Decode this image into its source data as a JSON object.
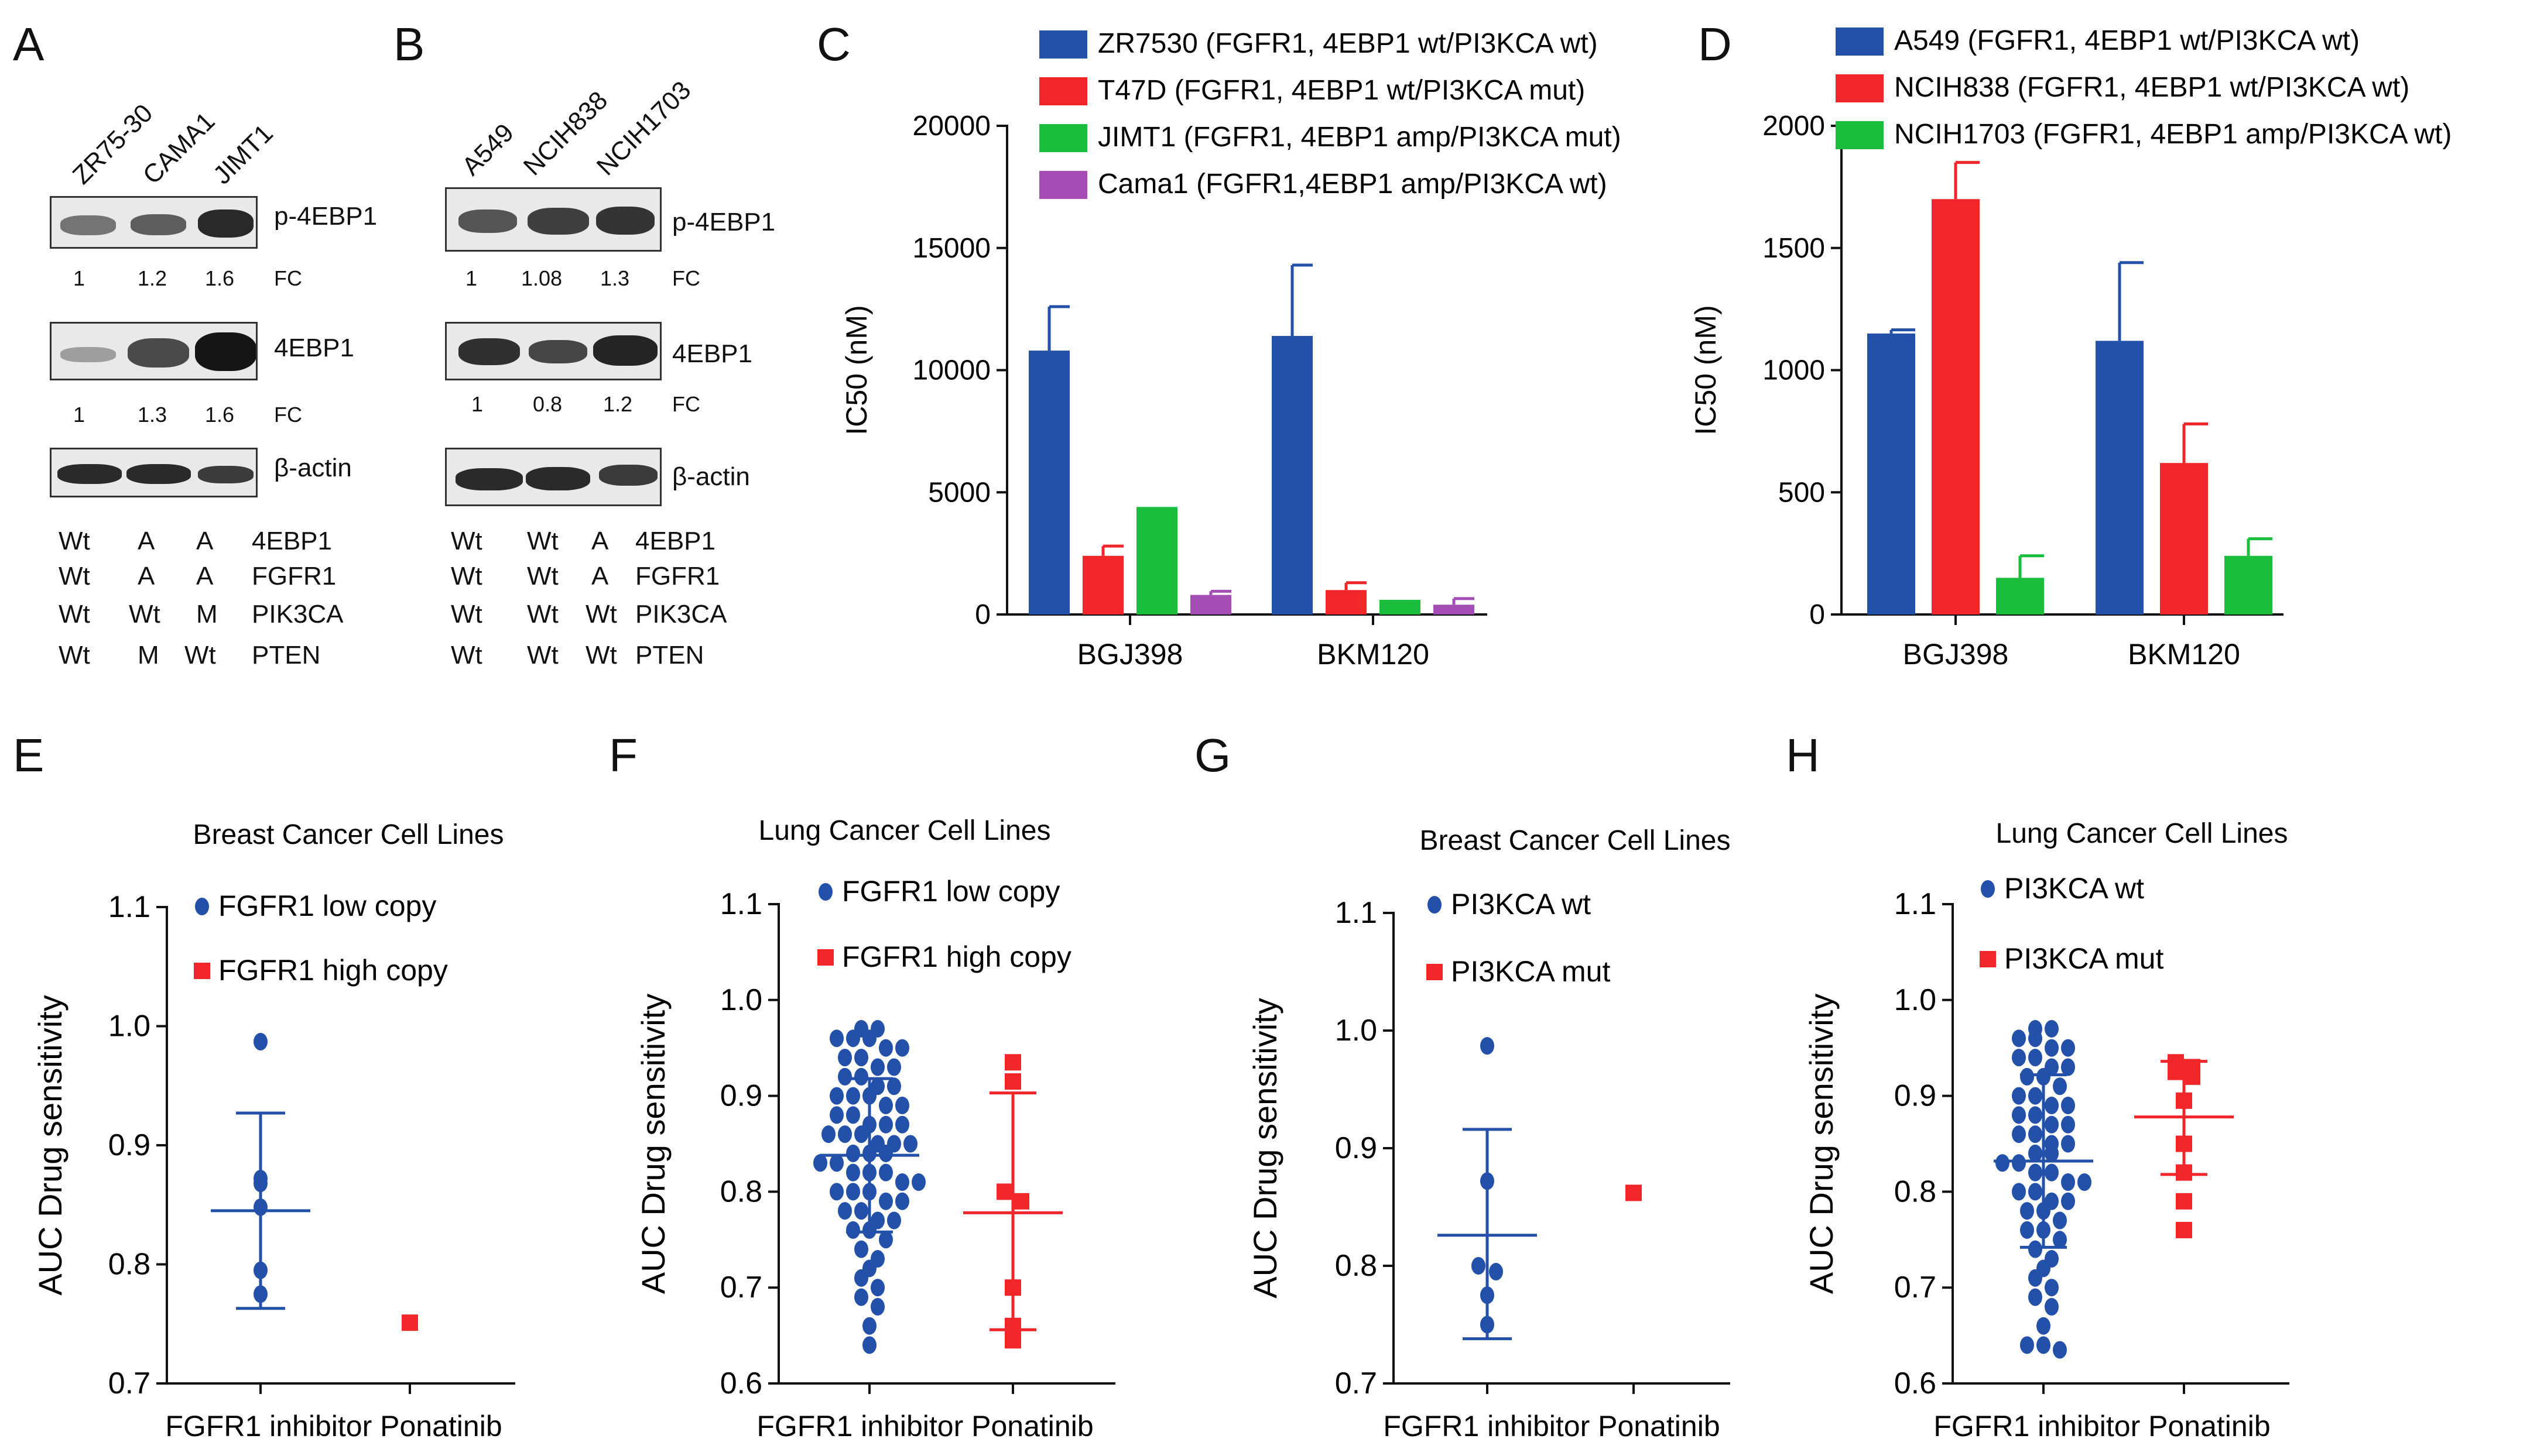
{
  "panels": {
    "A": "A",
    "B": "B",
    "C": "C",
    "D": "D",
    "E": "E",
    "F": "F",
    "G": "G",
    "H": "H"
  },
  "blotA": {
    "lanes": [
      "ZR75-30",
      "CAMA1",
      "JIMT1"
    ],
    "rows": [
      {
        "name": "p-4EBP1",
        "fc": [
          "1",
          "1.2",
          "1.6"
        ],
        "fc_label": "FC",
        "intensity": [
          0.55,
          0.65,
          0.9
        ]
      },
      {
        "name": "4EBP1",
        "fc": [
          "1",
          "1.3",
          "1.6"
        ],
        "fc_label": "FC",
        "intensity": [
          0.35,
          0.7,
          0.95
        ]
      },
      {
        "name": "β-actin",
        "intensity": [
          0.85,
          0.85,
          0.8
        ]
      }
    ],
    "genotype": [
      {
        "values": [
          "Wt",
          "A",
          "A"
        ],
        "gene": "4EBP1"
      },
      {
        "values": [
          "Wt",
          "A",
          "A"
        ],
        "gene": "FGFR1"
      },
      {
        "values": [
          "Wt",
          "Wt",
          "M"
        ],
        "gene": "PIK3CA"
      },
      {
        "values": [
          "Wt",
          "M",
          "Wt"
        ],
        "gene": "PTEN"
      }
    ]
  },
  "blotB": {
    "lanes": [
      "A549",
      "NCIH838",
      "NCIH1703"
    ],
    "rows": [
      {
        "name": "p-4EBP1",
        "fc": [
          "1",
          "1.08",
          "1.3"
        ],
        "fc_label": "FC",
        "intensity": [
          0.7,
          0.8,
          0.85
        ]
      },
      {
        "name": "4EBP1",
        "fc": [
          "1",
          "0.8",
          "1.2"
        ],
        "fc_label": "FC",
        "intensity": [
          0.8,
          0.7,
          0.9
        ]
      },
      {
        "name": "β-actin",
        "intensity": [
          0.85,
          0.85,
          0.8
        ]
      }
    ],
    "genotype": [
      {
        "values": [
          "Wt",
          "Wt",
          "A"
        ],
        "gene": "4EBP1"
      },
      {
        "values": [
          "Wt",
          "Wt",
          "A"
        ],
        "gene": "FGFR1"
      },
      {
        "values": [
          "Wt",
          "Wt",
          "Wt"
        ],
        "gene": "PIK3CA"
      },
      {
        "values": [
          "Wt",
          "Wt",
          "Wt"
        ],
        "gene": "PTEN"
      }
    ]
  },
  "chart_data": [
    {
      "panel": "C",
      "type": "bar",
      "ylabel": "IC50 (nM)",
      "ylim": [
        0,
        20000
      ],
      "yticks": [
        0,
        5000,
        10000,
        15000,
        20000
      ],
      "categories": [
        "BGJ398",
        "BKM120"
      ],
      "series": [
        {
          "name": "ZR7530 (FGFR1, 4EBP1 wt/PI3KCA wt)",
          "color": "#2350a8",
          "values": [
            10800,
            11400
          ],
          "err": [
            1800,
            2900
          ]
        },
        {
          "name": "T47D (FGFR1, 4EBP1 wt/PI3KCA mut)",
          "color": "#f0262b",
          "values": [
            2400,
            1000
          ],
          "err": [
            400,
            300
          ]
        },
        {
          "name": "JIMT1 (FGFR1, 4EBP1 amp/PI3KCA mut)",
          "color": "#1bbd3c",
          "values": [
            4400,
            600
          ],
          "err": [
            0,
            0
          ]
        },
        {
          "name": "Cama1 (FGFR1,4EBP1 amp/PI3KCA wt)",
          "color": "#a34db5",
          "values": [
            800,
            400
          ],
          "err": [
            150,
            250
          ]
        }
      ]
    },
    {
      "panel": "D",
      "type": "bar",
      "ylabel": "IC50 (nM)",
      "ylim": [
        0,
        2000
      ],
      "yticks": [
        0,
        500,
        1000,
        1500,
        2000
      ],
      "categories": [
        "BGJ398",
        "BKM120"
      ],
      "series": [
        {
          "name": "A549 (FGFR1, 4EBP1 wt/PI3KCA wt)",
          "color": "#2350a8",
          "values": [
            1150,
            1120
          ],
          "err": [
            15,
            320
          ]
        },
        {
          "name": "NCIH838 (FGFR1, 4EBP1 wt/PI3KCA wt)",
          "color": "#f0262b",
          "values": [
            1700,
            620
          ],
          "err": [
            150,
            160
          ]
        },
        {
          "name": "NCIH1703 (FGFR1, 4EBP1 amp/PI3KCA wt)",
          "color": "#1bbd3c",
          "values": [
            150,
            240
          ],
          "err": [
            90,
            70
          ]
        }
      ]
    },
    {
      "panel": "E",
      "type": "scatter",
      "title": "Breast Cancer Cell Lines",
      "ylabel": "AUC Drug sensitivity",
      "xlabel": "FGFR1 inhibitor Ponatinib",
      "ylim": [
        0.7,
        1.1
      ],
      "yticks": [
        0.7,
        0.8,
        0.9,
        1.0,
        1.1
      ],
      "series": [
        {
          "name": "FGFR1 low copy",
          "marker": "circle",
          "color": "#2350a8",
          "values": [
            0.987,
            0.872,
            0.868,
            0.848,
            0.795,
            0.775
          ],
          "mean": 0.845,
          "sd_low": 0.763,
          "sd_high": 0.927
        },
        {
          "name": "FGFR1 high copy",
          "marker": "square",
          "color": "#f0262b",
          "values": [
            0.751
          ]
        }
      ]
    },
    {
      "panel": "F",
      "type": "scatter",
      "title": "Lung Cancer Cell Lines",
      "ylabel": "AUC Drug sensitivity",
      "xlabel": "FGFR1 inhibitor Ponatinib",
      "ylim": [
        0.6,
        1.1
      ],
      "yticks": [
        0.6,
        0.7,
        0.8,
        0.9,
        1.0,
        1.1
      ],
      "series": [
        {
          "name": "FGFR1 low copy",
          "marker": "circle",
          "color": "#2350a8",
          "values": [
            0.97,
            0.97,
            0.96,
            0.96,
            0.96,
            0.95,
            0.95,
            0.94,
            0.94,
            0.93,
            0.93,
            0.92,
            0.92,
            0.91,
            0.91,
            0.9,
            0.9,
            0.9,
            0.89,
            0.89,
            0.88,
            0.88,
            0.87,
            0.87,
            0.87,
            0.86,
            0.86,
            0.86,
            0.85,
            0.85,
            0.85,
            0.84,
            0.84,
            0.84,
            0.83,
            0.83,
            0.82,
            0.82,
            0.82,
            0.81,
            0.81,
            0.8,
            0.8,
            0.8,
            0.79,
            0.79,
            0.78,
            0.78,
            0.77,
            0.77,
            0.76,
            0.76,
            0.75,
            0.74,
            0.73,
            0.72,
            0.71,
            0.7,
            0.69,
            0.68,
            0.66,
            0.64
          ],
          "mean": 0.838,
          "sd_low": 0.758,
          "sd_high": 0.918
        },
        {
          "name": "FGFR1 high copy",
          "marker": "square",
          "color": "#f0262b",
          "values": [
            0.935,
            0.915,
            0.8,
            0.79,
            0.7,
            0.66,
            0.645
          ],
          "mean": 0.778,
          "sd_low": 0.656,
          "sd_high": 0.903
        }
      ]
    },
    {
      "panel": "G",
      "type": "scatter",
      "title": "Breast Cancer Cell Lines",
      "ylabel": "AUC Drug sensitivity",
      "xlabel": "FGFR1 inhibitor Ponatinib",
      "ylim": [
        0.7,
        1.1
      ],
      "yticks": [
        0.7,
        0.8,
        0.9,
        1.0,
        1.1
      ],
      "series": [
        {
          "name": "PI3KCA wt",
          "marker": "circle",
          "color": "#2350a8",
          "values": [
            0.987,
            0.872,
            0.8,
            0.795,
            0.775,
            0.75
          ],
          "mean": 0.826,
          "sd_low": 0.738,
          "sd_high": 0.916
        },
        {
          "name": "PI3KCA mut",
          "marker": "square",
          "color": "#f0262b",
          "values": [
            0.862
          ]
        }
      ]
    },
    {
      "panel": "H",
      "type": "scatter",
      "title": "Lung Cancer Cell Lines",
      "ylabel": "AUC Drug sensitivity",
      "xlabel": "FGFR1 inhibitor Ponatinib",
      "ylim": [
        0.6,
        1.1
      ],
      "yticks": [
        0.6,
        0.7,
        0.8,
        0.9,
        1.0,
        1.1
      ],
      "series": [
        {
          "name": "PI3KCA wt",
          "marker": "circle",
          "color": "#2350a8",
          "values": [
            0.97,
            0.97,
            0.96,
            0.96,
            0.95,
            0.95,
            0.94,
            0.94,
            0.93,
            0.93,
            0.92,
            0.92,
            0.91,
            0.9,
            0.9,
            0.89,
            0.89,
            0.88,
            0.88,
            0.87,
            0.87,
            0.86,
            0.86,
            0.85,
            0.85,
            0.84,
            0.84,
            0.83,
            0.83,
            0.82,
            0.82,
            0.81,
            0.81,
            0.8,
            0.8,
            0.79,
            0.79,
            0.78,
            0.78,
            0.77,
            0.76,
            0.76,
            0.75,
            0.74,
            0.73,
            0.72,
            0.71,
            0.7,
            0.69,
            0.68,
            0.66,
            0.64,
            0.64,
            0.635
          ],
          "mean": 0.832,
          "sd_low": 0.742,
          "sd_high": 0.922
        },
        {
          "name": "PI3KCA mut",
          "marker": "square",
          "color": "#f0262b",
          "values": [
            0.935,
            0.93,
            0.925,
            0.92,
            0.895,
            0.85,
            0.82,
            0.79,
            0.76
          ],
          "mean": 0.878,
          "sd_low": 0.818,
          "sd_high": 0.936
        }
      ]
    }
  ]
}
